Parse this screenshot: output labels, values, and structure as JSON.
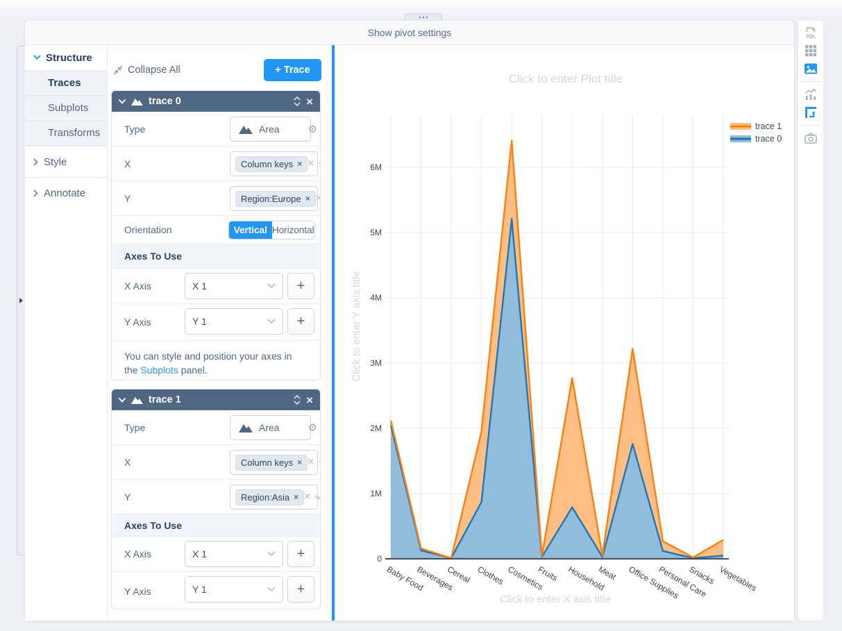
{
  "app": {
    "top_bar_label": "Show pivot settings"
  },
  "glyphs": {
    "close": "×",
    "clear": "×",
    "plus": "+",
    "gear": "⚙"
  },
  "colors": {
    "accent": "#2196f3",
    "panel_header_bg": "#506784",
    "trace0_line": "#1f77b4",
    "trace0_fill": "#92bcdb",
    "trace1_line": "#ff7f0e",
    "trace1_fill": "#ffbe83"
  },
  "sidebar": {
    "groups": [
      {
        "label": "Structure",
        "expanded": true,
        "items": [
          {
            "label": "Traces",
            "active": true
          },
          {
            "label": "Subplots",
            "active": false
          },
          {
            "label": "Transforms",
            "active": false
          }
        ]
      },
      {
        "label": "Style",
        "expanded": false,
        "items": []
      },
      {
        "label": "Annotate",
        "expanded": false,
        "items": []
      }
    ]
  },
  "panel": {
    "collapse_all_label": "Collapse All",
    "add_trace_label": "+ Trace",
    "field_labels": {
      "type": "Type",
      "x": "X",
      "y": "Y",
      "orientation": "Orientation",
      "axes_section": "Axes To Use",
      "x_axis": "X Axis",
      "y_axis": "Y Axis"
    },
    "traces": [
      {
        "title": "trace 0",
        "type_value": "Area",
        "x_value": "Column keys",
        "y_value": "Region:Europe",
        "orientation_options": [
          "Vertical",
          "Horizontal"
        ],
        "orientation_selected": "Vertical",
        "x_axis_value": "X 1",
        "y_axis_value": "Y 1",
        "axes_note_text": "You can style and position your axes in the",
        "axes_note_link": "Subplots",
        "axes_note_suffix": "panel."
      },
      {
        "title": "trace 1",
        "type_value": "Area",
        "x_value": "Column keys",
        "y_value": "Region:Asia",
        "x_axis_value": "X 1",
        "y_axis_value": "Y 1"
      }
    ]
  },
  "toolbar": {
    "sql_label": "SQL",
    "items": [
      {
        "name": "sql-export-icon",
        "active": false
      },
      {
        "name": "table-renderer-icon",
        "active": false
      },
      {
        "name": "chart-image-icon",
        "active": true
      },
      {
        "name": "bar-stats-icon",
        "active": false
      },
      {
        "name": "pivot-chart-icon",
        "active": true
      },
      {
        "name": "camera-snapshot-icon",
        "active": false
      }
    ]
  },
  "chart_data": {
    "type": "area",
    "title_placeholder": "Click to enter Plot title",
    "x_title_placeholder": "Click to enter X axis title",
    "y_title_placeholder": "Click to enter Y axis title",
    "categories": [
      "Baby Food",
      "Beverages",
      "Cereal",
      "Clothes",
      "Cosmetics",
      "Fruits",
      "Household",
      "Meat",
      "Office Supplies",
      "Personal Care",
      "Snacks",
      "Vegetables"
    ],
    "values_unit": "millions",
    "ylim": [
      0,
      6.8
    ],
    "grid": true,
    "legend_position": "top-right",
    "legend_order": [
      "trace 1",
      "trace 0"
    ],
    "y_ticks": [
      {
        "label": "0",
        "value": 0
      },
      {
        "label": "1M",
        "value": 1
      },
      {
        "label": "2M",
        "value": 2
      },
      {
        "label": "3M",
        "value": 3
      },
      {
        "label": "4M",
        "value": 4
      },
      {
        "label": "5M",
        "value": 5
      },
      {
        "label": "6M",
        "value": 6
      }
    ],
    "series": [
      {
        "name": "trace 0",
        "source": "Region:Europe",
        "line_color": "#1f77b4",
        "fill_color": "#92bcdb",
        "values": [
          2.05,
          0.13,
          0.01,
          0.87,
          5.21,
          0.03,
          0.79,
          0.03,
          1.76,
          0.12,
          0.01,
          0.05
        ]
      },
      {
        "name": "trace 1",
        "source": "Region:Asia",
        "line_color": "#ff7f0e",
        "fill_color": "#ffbe83",
        "values": [
          2.12,
          0.16,
          0.01,
          1.95,
          6.41,
          0.04,
          2.77,
          0.05,
          3.22,
          0.27,
          0.02,
          0.29
        ]
      }
    ]
  }
}
